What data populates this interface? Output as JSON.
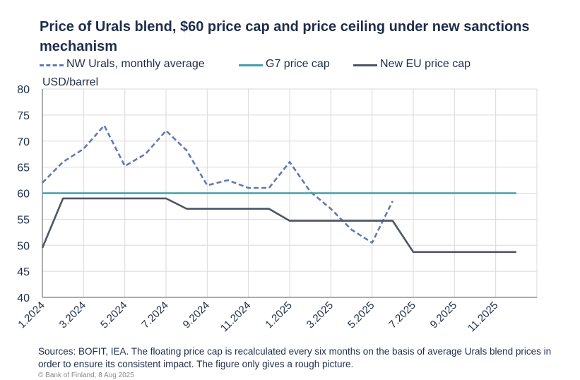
{
  "title": "Price of Urals blend, $60 price cap and price ceiling under new sanctions mechanism",
  "unit_label": "USD/barrel",
  "footer": "Sources: BOFIT, IEA. The floating price cap is recalculated every six months on the basis of average Urals blend prices in order to ensure its consistent impact. The figure only gives a rough picture.",
  "credit": "© Bank of Finland, 8 Aug 2025",
  "legend": [
    {
      "label": "NW Urals, monthly average",
      "color": "#6179b5",
      "style": "dashed"
    },
    {
      "label": "G7 price cap",
      "color": "#3fa0aa",
      "style": "solid"
    },
    {
      "label": "New EU price cap",
      "color": "#4d5566",
      "style": "solid"
    }
  ],
  "chart_data": {
    "type": "line",
    "title": "Price of Urals blend, $60 price cap and price ceiling under new sanctions mechanism",
    "ylabel": "USD/barrel",
    "ylim": [
      40,
      80
    ],
    "yticks": [
      40,
      45,
      50,
      55,
      60,
      65,
      70,
      75,
      80
    ],
    "xlim": [
      "1.2024",
      "1.2026"
    ],
    "xticks": [
      "1.2024",
      "3.2024",
      "5.2024",
      "7.2024",
      "9.2024",
      "11.2024",
      "1.2025",
      "3.2025",
      "5.2025",
      "7.2025",
      "9.2025",
      "11.2025"
    ],
    "grid": "vertical and horizontal",
    "legend_position": "top",
    "series": [
      {
        "name": "NW Urals, monthly average",
        "color": "#6179b5",
        "style": "dashed",
        "x": [
          "1.2024",
          "2.2024",
          "3.2024",
          "4.2024",
          "5.2024",
          "6.2024",
          "7.2024",
          "8.2024",
          "9.2024",
          "10.2024",
          "11.2024",
          "12.2024",
          "1.2025",
          "2.2025",
          "3.2025",
          "4.2025",
          "5.2025",
          "6.2025"
        ],
        "values": [
          62,
          66,
          68.5,
          73,
          65.2,
          67.5,
          72,
          68.2,
          61.5,
          62.5,
          61,
          61,
          66,
          60.3,
          57,
          53,
          50.5,
          58.5
        ]
      },
      {
        "name": "G7 price cap",
        "color": "#3fa0aa",
        "style": "solid",
        "x": [
          "1.2024",
          "12.2025"
        ],
        "values": [
          60,
          60
        ]
      },
      {
        "name": "New EU price cap",
        "color": "#4d5566",
        "style": "solid",
        "x": [
          "1.2024",
          "2.2024",
          "7.2024",
          "8.2024",
          "12.2024",
          "1.2025",
          "6.2025",
          "7.2025",
          "12.2025"
        ],
        "values": [
          49.5,
          59,
          59,
          57,
          57,
          54.7,
          54.7,
          48.7,
          48.7
        ]
      }
    ]
  }
}
